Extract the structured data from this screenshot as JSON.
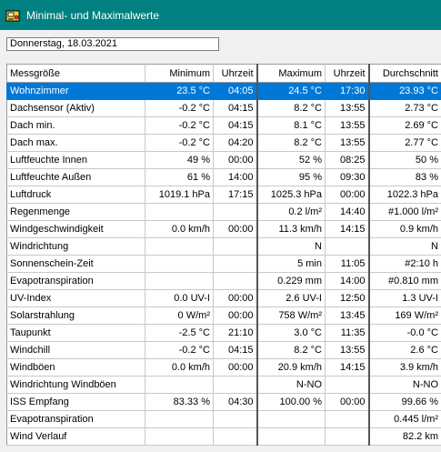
{
  "window": {
    "title": "Minimal- und Maximalwerte"
  },
  "date_field": "Donnerstag, 18.03.2021",
  "columns": [
    "Messgröße",
    "Minimum",
    "Uhrzeit",
    "Maximum",
    "Uhrzeit",
    "Durchschnitt"
  ],
  "rows": [
    [
      "Wohnzimmer",
      "23.5 °C",
      "04:05",
      "24.5 °C",
      "17:30",
      "23.93 °C"
    ],
    [
      "Dachsensor (Aktiv)",
      "-0.2 °C",
      "04:15",
      "8.2 °C",
      "13:55",
      "2.73 °C"
    ],
    [
      "Dach min.",
      "-0.2 °C",
      "04:15",
      "8.1 °C",
      "13:55",
      "2.69 °C"
    ],
    [
      "Dach max.",
      "-0.2 °C",
      "04:20",
      "8.2 °C",
      "13:55",
      "2.77 °C"
    ],
    [
      "Luftfeuchte Innen",
      "49 %",
      "00:00",
      "52 %",
      "08:25",
      "50 %"
    ],
    [
      "Luftfeuchte Außen",
      "61 %",
      "14:00",
      "95 %",
      "09:30",
      "83 %"
    ],
    [
      "Luftdruck",
      "1019.1 hPa",
      "17:15",
      "1025.3 hPa",
      "00:00",
      "1022.3 hPa"
    ],
    [
      "Regenmenge",
      "",
      "",
      "0.2 l/m²",
      "14:40",
      "#1.000 l/m²"
    ],
    [
      "Windgeschwindigkeit",
      "0.0 km/h",
      "00:00",
      "11.3 km/h",
      "14:15",
      "0.9 km/h"
    ],
    [
      "Windrichtung",
      "",
      "",
      "N",
      "",
      "N"
    ],
    [
      "Sonnenschein-Zeit",
      "",
      "",
      "5 min",
      "11:05",
      "#2:10 h"
    ],
    [
      "Evapotranspiration",
      "",
      "",
      "0.229 mm",
      "14:00",
      "#0.810 mm"
    ],
    [
      "UV-Index",
      "0.0 UV-I",
      "00:00",
      "2.6 UV-I",
      "12:50",
      "1.3 UV-I"
    ],
    [
      "Solarstrahlung",
      "0 W/m²",
      "00:00",
      "758 W/m²",
      "13:45",
      "169 W/m²"
    ],
    [
      "Taupunkt",
      "-2.5 °C",
      "21:10",
      "3.0 °C",
      "11:35",
      "-0.0 °C"
    ],
    [
      "Windchill",
      "-0.2 °C",
      "04:15",
      "8.2 °C",
      "13:55",
      "2.6 °C"
    ],
    [
      "Windböen",
      "0.0 km/h",
      "00:00",
      "20.9 km/h",
      "14:15",
      "3.9 km/h"
    ],
    [
      "Windrichtung Windböen",
      "",
      "",
      "N-NO",
      "",
      "N-NO"
    ],
    [
      "ISS Empfang",
      "83.33 %",
      "04:30",
      "100.00 %",
      "00:00",
      "99.66 %"
    ],
    [
      "Evapotranspiration",
      "",
      "",
      "",
      "",
      "0.445 l/m²"
    ],
    [
      "Wind Verlauf",
      "",
      "",
      "",
      "",
      "82.2 km"
    ]
  ],
  "selected_row": 0,
  "colors": {
    "titlebar": "#008080",
    "selection": "#0078d7"
  },
  "icons": {
    "app": "weather-station-icon"
  }
}
